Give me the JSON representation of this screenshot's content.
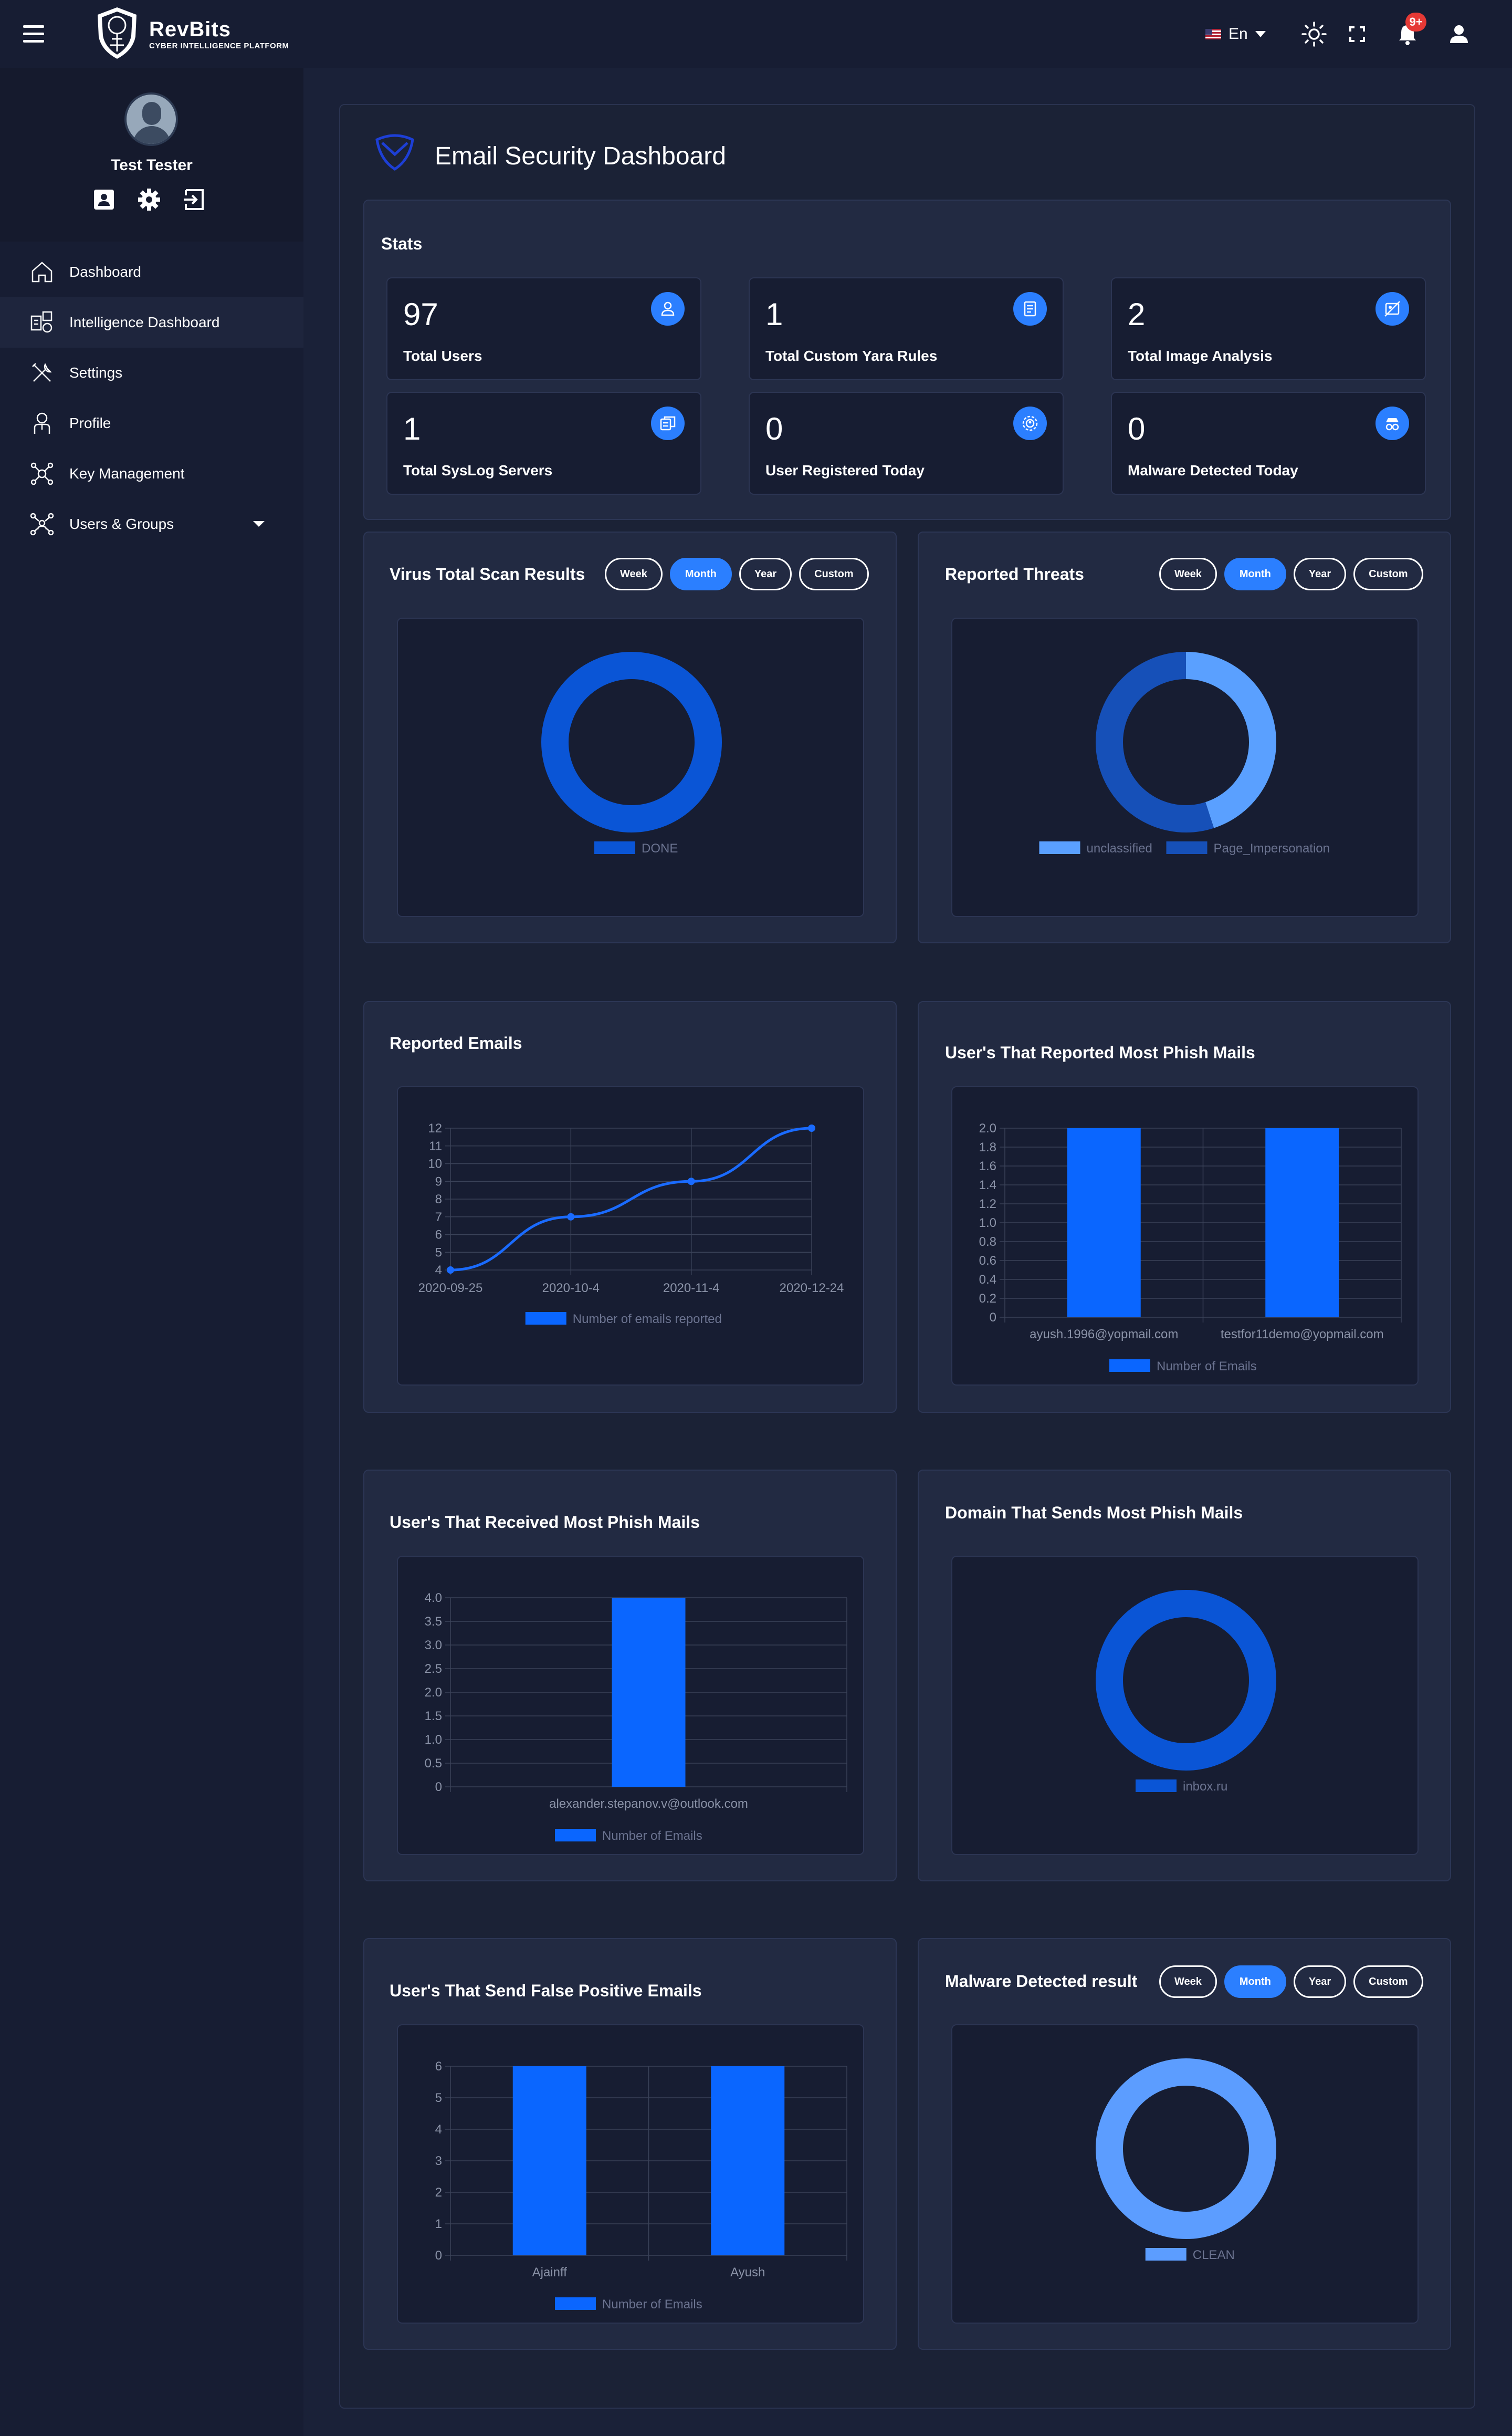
{
  "header": {
    "brand_name": "RevBits",
    "brand_sub": "CYBER INTELLIGENCE PLATFORM",
    "language": "En",
    "notif_badge": "9+",
    "icons": [
      "menu-icon",
      "sun-icon",
      "fullscreen-icon",
      "bell-icon",
      "user-icon"
    ]
  },
  "sidebar": {
    "user_name": "Test Tester",
    "nav": [
      {
        "label": "Dashboard",
        "icon": "home-icon"
      },
      {
        "label": "Intelligence Dashboard",
        "icon": "intelligence-icon"
      },
      {
        "label": "Settings",
        "icon": "tools-icon"
      },
      {
        "label": "Profile",
        "icon": "profile-icon"
      },
      {
        "label": "Key Management",
        "icon": "key-network-icon"
      },
      {
        "label": "Users & Groups",
        "icon": "users-network-icon"
      }
    ]
  },
  "page": {
    "title": "Email Security Dashboard"
  },
  "stats": {
    "title": "Stats",
    "cards": [
      {
        "value": "97",
        "label": "Total Users",
        "icon": "user-icon"
      },
      {
        "value": "1",
        "label": "Total Custom Yara Rules",
        "icon": "document-icon"
      },
      {
        "value": "2",
        "label": "Total Image Analysis",
        "icon": "image-off-icon"
      },
      {
        "value": "1",
        "label": "Total SysLog Servers",
        "icon": "server-copy-icon"
      },
      {
        "value": "0",
        "label": "User Registered Today",
        "icon": "user-gear-icon"
      },
      {
        "value": "0",
        "label": "Malware Detected Today",
        "icon": "incognito-icon"
      }
    ]
  },
  "filters": [
    "Week",
    "Month",
    "Year",
    "Custom"
  ],
  "panels": {
    "virus_total": {
      "title": "Virus Total Scan Results",
      "active_filter": "Month"
    },
    "reported_threats": {
      "title": "Reported Threats",
      "active_filter": "Month"
    },
    "reported_emails": {
      "title": "Reported Emails"
    },
    "users_reported": {
      "title": "User's That Reported Most Phish Mails"
    },
    "users_received": {
      "title": "User's That Received Most Phish Mails"
    },
    "domain_sends": {
      "title": "Domain That Sends Most Phish Mails"
    },
    "false_positive": {
      "title": "User's That Send False Positive Emails"
    },
    "malware_detected": {
      "title": "Malware Detected result",
      "active_filter": "Month"
    }
  },
  "colors": {
    "accent": "#2b7fff",
    "bar": "#0a66ff",
    "donut_dark": "#0a55d6",
    "donut_mid": "#1650b8",
    "donut_light": "#5aa0ff",
    "clean": "#5c9dff"
  },
  "chart_data": [
    {
      "type": "pie",
      "title": "Virus Total Scan Results",
      "labels": [
        "DONE"
      ],
      "values": [
        1
      ],
      "colors": [
        "#0a55d6"
      ]
    },
    {
      "type": "pie",
      "title": "Reported Threats",
      "labels": [
        "unclassified",
        "Page_Impersonation"
      ],
      "values": [
        45,
        55
      ],
      "colors": [
        "#5aa0ff",
        "#1650b8"
      ]
    },
    {
      "type": "line",
      "title": "Reported Emails",
      "categories": [
        "2020-09-25",
        "2020-10-4",
        "2020-11-4",
        "2020-12-24"
      ],
      "series": [
        {
          "name": "Number of emails reported",
          "values": [
            4,
            7,
            9,
            12
          ]
        }
      ],
      "ylim": [
        4,
        12
      ],
      "yticks": [
        4,
        5,
        6,
        7,
        8,
        9,
        10,
        11,
        12
      ]
    },
    {
      "type": "bar",
      "title": "User's That Reported Most Phish Mails",
      "categories": [
        "ayush.1996@yopmail.com",
        "testfor11demo@yopmail.com"
      ],
      "series": [
        {
          "name": "Number of Emails",
          "values": [
            2,
            2
          ]
        }
      ],
      "ylim": [
        0,
        2
      ],
      "yticks": [
        0,
        0.2,
        0.4,
        0.6,
        0.8,
        1.0,
        1.2,
        1.4,
        1.6,
        1.8,
        2.0
      ],
      "ytick_labels": [
        "0",
        "0.2",
        "0.4",
        "0.6",
        "0.8",
        "1.0",
        "1.2",
        "1.4",
        "1.6",
        "1.8",
        "2.0"
      ]
    },
    {
      "type": "bar",
      "title": "User's That Received Most Phish Mails",
      "categories": [
        "alexander.stepanov.v@outlook.com"
      ],
      "series": [
        {
          "name": "Number of Emails",
          "values": [
            4
          ]
        }
      ],
      "ylim": [
        0,
        4
      ],
      "yticks": [
        0,
        0.5,
        1.0,
        1.5,
        2.0,
        2.5,
        3.0,
        3.5,
        4.0
      ],
      "ytick_labels": [
        "0",
        "0.5",
        "1.0",
        "1.5",
        "2.0",
        "2.5",
        "3.0",
        "3.5",
        "4.0"
      ]
    },
    {
      "type": "pie",
      "title": "Domain That Sends Most Phish Mails",
      "labels": [
        "inbox.ru"
      ],
      "values": [
        1
      ],
      "colors": [
        "#0a55d6"
      ]
    },
    {
      "type": "bar",
      "title": "User's That Send False Positive Emails",
      "categories": [
        "Ajainff",
        "Ayush"
      ],
      "series": [
        {
          "name": "Number of Emails",
          "values": [
            6,
            6
          ]
        }
      ],
      "ylim": [
        0,
        6
      ],
      "yticks": [
        0,
        1,
        2,
        3,
        4,
        5,
        6
      ],
      "ytick_labels": [
        "0",
        "1",
        "2",
        "3",
        "4",
        "5",
        "6"
      ]
    },
    {
      "type": "pie",
      "title": "Malware Detected result",
      "labels": [
        "CLEAN"
      ],
      "values": [
        1
      ],
      "colors": [
        "#5c9dff"
      ]
    }
  ]
}
